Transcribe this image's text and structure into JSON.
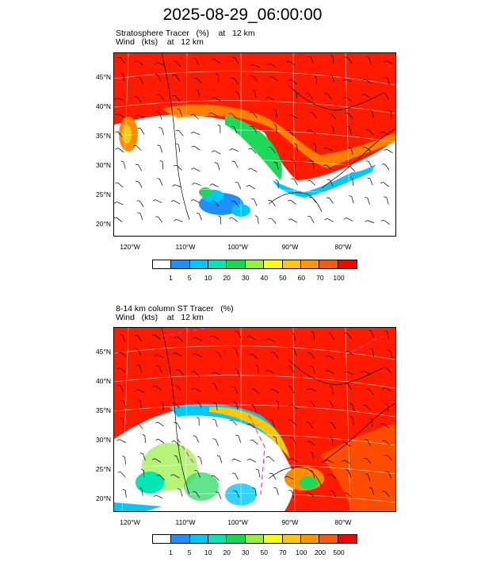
{
  "title": "2025-08-29_06:00:00",
  "panel1": {
    "subtitle_line1": "Stratosphere Tracer   (%)    at   12 km",
    "subtitle_line2": "Wind   (kts)    at   12 km",
    "lat_labels": [
      "45°N",
      "40°N",
      "35°N",
      "30°N",
      "25°N",
      "20°N"
    ],
    "lon_labels": [
      "120°W",
      "110°W",
      "100°W",
      "90°W",
      "80°W"
    ],
    "colorbar_labels": [
      "1",
      "5",
      "10",
      "20",
      "30",
      "40",
      "50",
      "60",
      "70",
      "100"
    ]
  },
  "panel2": {
    "subtitle_line1": "8-14 km column ST Tracer   (%)",
    "subtitle_line2": "Wind   (kts)    at   12 km",
    "lat_labels": [
      "45°N",
      "40°N",
      "35°N",
      "30°N",
      "25°N",
      "20°N"
    ],
    "lon_labels": [
      "120°W",
      "110°W",
      "100°W",
      "90°W",
      "80°W"
    ],
    "colorbar_labels": [
      "1",
      "5",
      "10",
      "20",
      "30",
      "50",
      "70",
      "100",
      "200",
      "500"
    ]
  },
  "colorbar_colors": [
    "#ffffff",
    "#1f8fff",
    "#00c8ff",
    "#00e6b4",
    "#14d850",
    "#96f03c",
    "#ffff00",
    "#ffc800",
    "#ff9600",
    "#ff5a00",
    "#ff0000"
  ]
}
